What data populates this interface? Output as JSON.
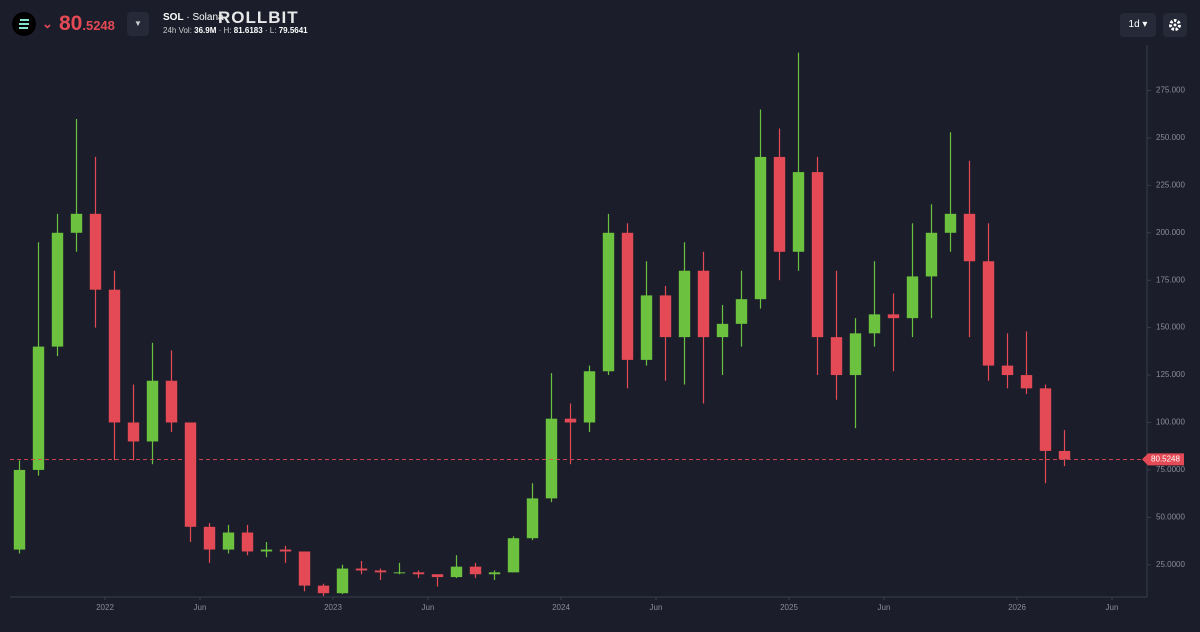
{
  "header": {
    "price": "80.5248",
    "symbol": "SOL",
    "name": "· Solana",
    "brand": "ROLLBIT",
    "vol_label": "24h Vol:",
    "vol": "36.9M",
    "high_label": "· H:",
    "high": "81.6183",
    "low_label": "· L:",
    "low": "79.5641",
    "interval": "1d"
  },
  "chart_data": {
    "type": "candlestick",
    "x": [
      "2021-08",
      "2021-09",
      "2021-10",
      "2021-11",
      "2021-12",
      "2022-01",
      "2022-02",
      "2022-03",
      "2022-04",
      "2022-05",
      "2022-06",
      "2022-07",
      "2022-08",
      "2022-09",
      "2022-10",
      "2022-11",
      "2022-12",
      "2023-01",
      "2023-02",
      "2023-03",
      "2023-04",
      "2023-05",
      "2023-06",
      "2023-07",
      "2023-08",
      "2023-09",
      "2023-10",
      "2023-11",
      "2023-12",
      "2024-01",
      "2024-02",
      "2024-03",
      "2024-04",
      "2024-05",
      "2024-06",
      "2024-07",
      "2024-08",
      "2024-09",
      "2024-10",
      "2024-11",
      "2024-12",
      "2025-01",
      "2025-02",
      "2025-03",
      "2025-04",
      "2025-05",
      "2025-06",
      "2025-07",
      "2025-08",
      "2025-09",
      "2025-10",
      "2025-11",
      "2025-12",
      "2026-01",
      "2026-02",
      "2026-03"
    ],
    "open": [
      33,
      75,
      140,
      200,
      210,
      170,
      100,
      90,
      122,
      100,
      45,
      33,
      42,
      32,
      33,
      32,
      14,
      10,
      23,
      22,
      21,
      21,
      20,
      18.5,
      24,
      20,
      21,
      39,
      60,
      102,
      100,
      127,
      200,
      133,
      167,
      145,
      180,
      145,
      152,
      165,
      240,
      190,
      232,
      145,
      125,
      147,
      157,
      155,
      177,
      200,
      210,
      185,
      130,
      125,
      118,
      85
    ],
    "high": [
      80,
      195,
      210,
      260,
      240,
      180,
      120,
      142,
      138,
      100,
      47,
      46,
      46,
      37,
      35,
      32,
      15,
      25,
      27,
      23,
      26,
      22,
      20,
      30,
      26,
      22,
      40,
      68,
      126,
      110,
      130,
      210,
      205,
      185,
      172,
      195,
      190,
      162,
      180,
      265,
      255,
      295,
      240,
      180,
      155,
      185,
      168,
      205,
      215,
      253,
      238,
      205,
      147,
      148,
      120,
      96
    ],
    "low": [
      31,
      72,
      135,
      190,
      150,
      80,
      80,
      78,
      95,
      37,
      26,
      31,
      30,
      29,
      26,
      11,
      8.5,
      9.5,
      20,
      17,
      20,
      18,
      13.5,
      18,
      18,
      17,
      21,
      38,
      58,
      78,
      95,
      125,
      118,
      130,
      122,
      120,
      110,
      125,
      140,
      160,
      175,
      180,
      125,
      112,
      97,
      140,
      127,
      145,
      155,
      190,
      145,
      122,
      118,
      115,
      68,
      77
    ],
    "close": [
      75,
      140,
      200,
      210,
      170,
      100,
      90,
      122,
      100,
      45,
      33,
      42,
      32,
      33,
      32,
      14,
      10,
      23,
      22,
      21,
      21,
      20,
      18.5,
      24,
      20,
      21,
      39,
      60,
      102,
      100,
      127,
      200,
      133,
      167,
      145,
      180,
      145,
      152,
      165,
      240,
      190,
      232,
      145,
      125,
      147,
      157,
      155,
      177,
      200,
      210,
      185,
      130,
      125,
      118,
      85,
      80.5248
    ],
    "up_color": "#6cc23f",
    "down_color": "#e34a55",
    "xlim": [
      "2021-08",
      "2026-08"
    ],
    "xticks": [
      {
        "value": "2022-01",
        "label": "2022"
      },
      {
        "value": "2022-06",
        "label": "Jun"
      },
      {
        "value": "2023-01",
        "label": "2023"
      },
      {
        "value": "2023-06",
        "label": "Jun"
      },
      {
        "value": "2024-01",
        "label": "2024"
      },
      {
        "value": "2024-06",
        "label": "Jun"
      },
      {
        "value": "2025-01",
        "label": "2025"
      },
      {
        "value": "2025-06",
        "label": "Jun"
      },
      {
        "value": "2026-01",
        "label": "2026"
      },
      {
        "value": "2026-06",
        "label": "Jun"
      }
    ],
    "ylim": [
      8,
      299
    ],
    "yticks": [
      {
        "value": 25,
        "label": "25.0000"
      },
      {
        "value": 50,
        "label": "50.0000"
      },
      {
        "value": 75,
        "label": "75.0000"
      },
      {
        "value": 100,
        "label": "100.000"
      },
      {
        "value": 125,
        "label": "125.000"
      },
      {
        "value": 150,
        "label": "150.000"
      },
      {
        "value": 175,
        "label": "175.000"
      },
      {
        "value": 200,
        "label": "200.000"
      },
      {
        "value": 225,
        "label": "225.000"
      },
      {
        "value": 250,
        "label": "250.000"
      },
      {
        "value": 275,
        "label": "275.000"
      }
    ],
    "current_price": 80.5248,
    "price_color": "#e34a55"
  }
}
